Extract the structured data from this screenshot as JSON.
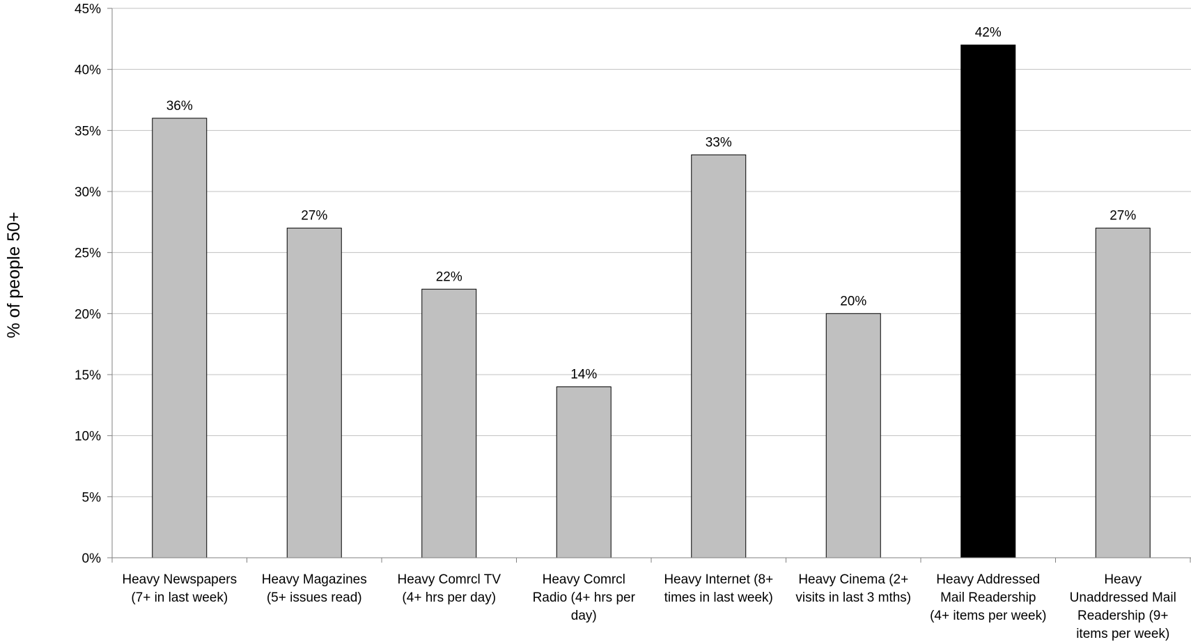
{
  "chart_data": {
    "type": "bar",
    "title": "",
    "xlabel": "",
    "ylabel": "% of people 50+",
    "ylim": [
      0,
      45
    ],
    "yticks": [
      "0%",
      "5%",
      "10%",
      "15%",
      "20%",
      "25%",
      "30%",
      "35%",
      "40%",
      "45%"
    ],
    "ytick_values": [
      0,
      5,
      10,
      15,
      20,
      25,
      30,
      35,
      40,
      45
    ],
    "grid": true,
    "categories": [
      [
        "Heavy Newspapers",
        "(7+ in last week)"
      ],
      [
        "Heavy Magazines",
        "(5+ issues read)"
      ],
      [
        "Heavy Comrcl TV",
        "(4+ hrs per day)"
      ],
      [
        "Heavy Comrcl",
        "Radio (4+ hrs per",
        "day)"
      ],
      [
        "Heavy Internet (8+",
        "times in last week)"
      ],
      [
        "Heavy Cinema (2+",
        "visits in last 3 mths)"
      ],
      [
        "Heavy Addressed",
        "Mail Readership",
        "(4+ items per week)"
      ],
      [
        "Heavy",
        "Unaddressed Mail",
        "Readership (9+",
        "items per week)"
      ]
    ],
    "values": [
      36,
      27,
      22,
      14,
      33,
      20,
      42,
      27
    ],
    "data_labels": [
      "36%",
      "27%",
      "22%",
      "14%",
      "33%",
      "20%",
      "42%",
      "27%"
    ],
    "colors": {
      "default_bar": "#c0c0c0",
      "highlight_bar": "#000000",
      "bar_border": "#000000",
      "grid": "#c0c0c0",
      "axis": "#808080"
    },
    "highlight_index": 6
  }
}
